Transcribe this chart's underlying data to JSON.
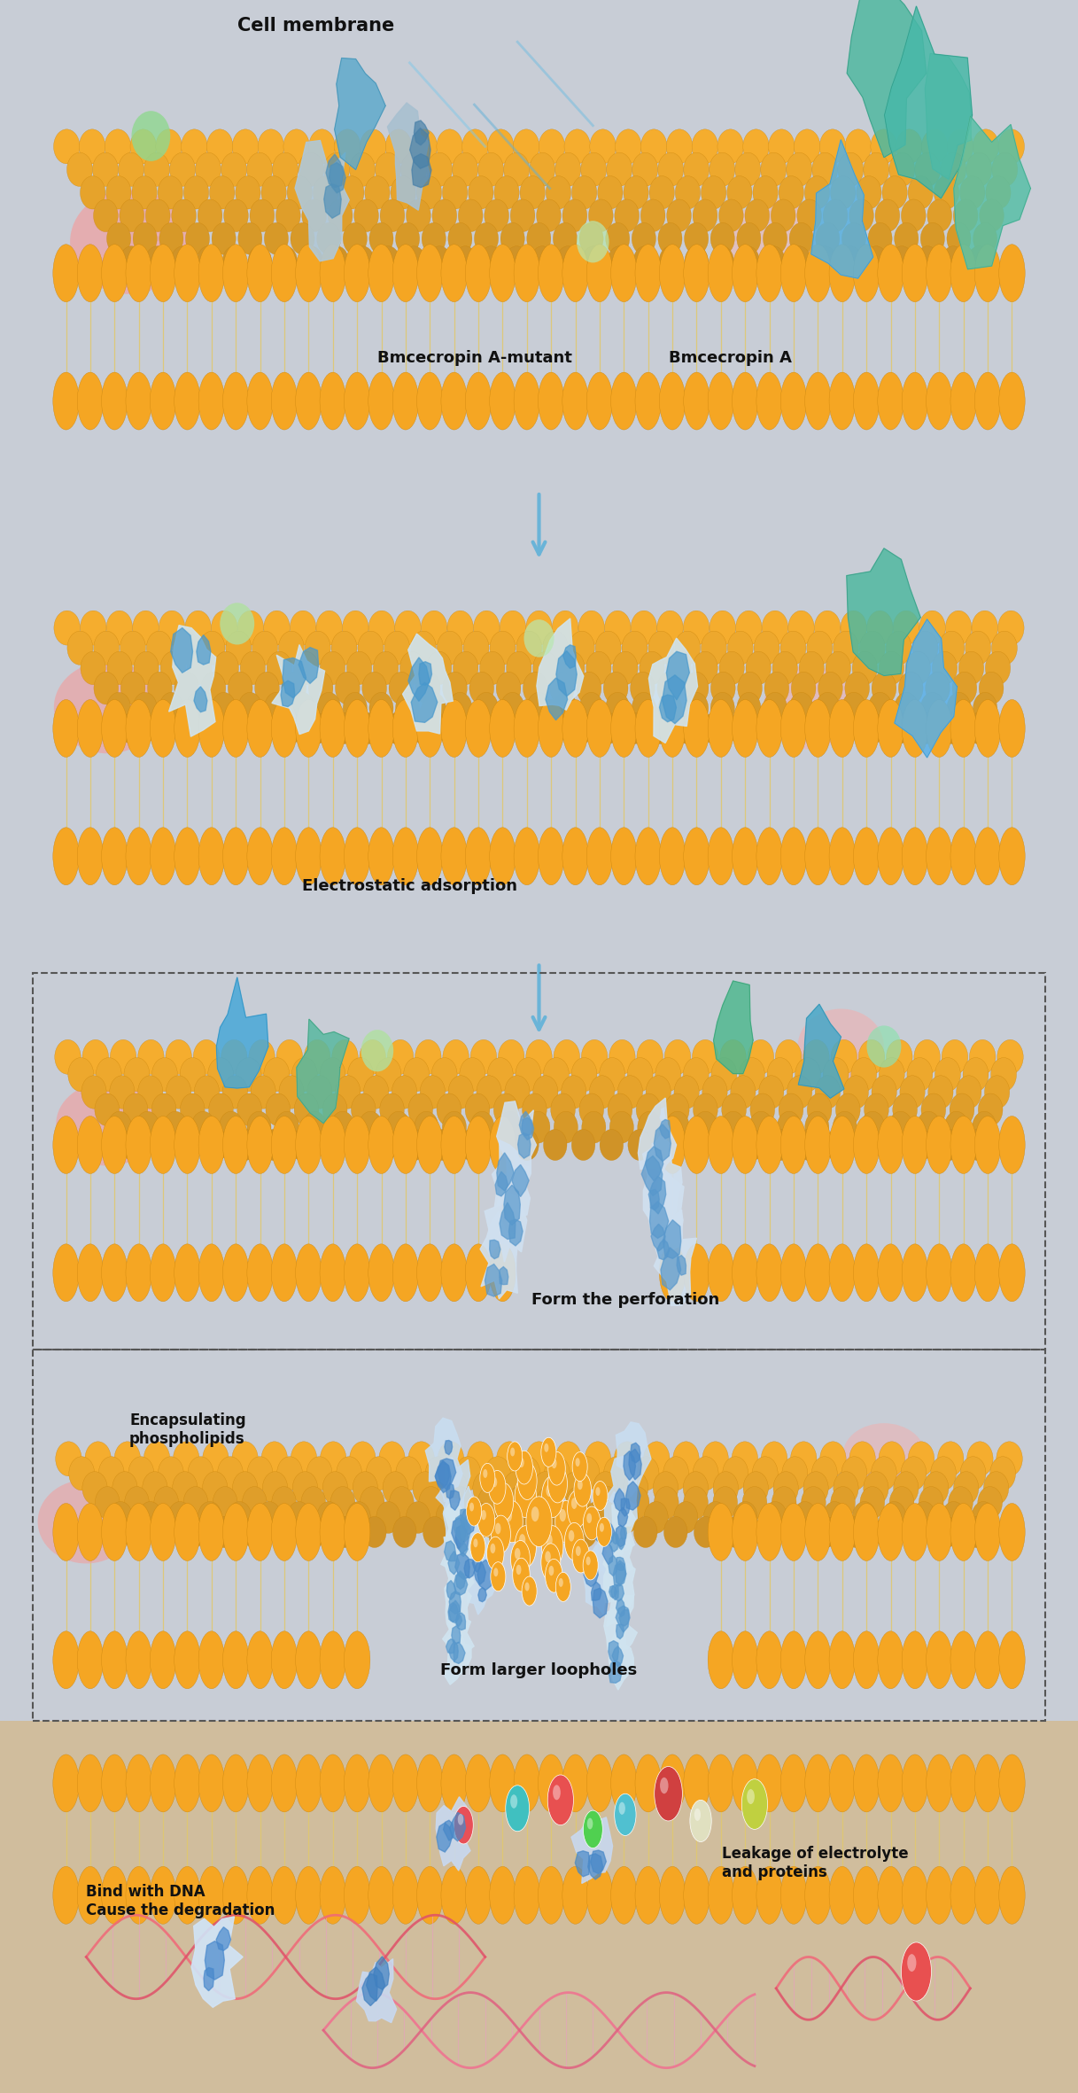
{
  "background_color": "#c8cdd6",
  "membrane_color": "#f5a623",
  "membrane_dark": "#c8830a",
  "lipid_tail_color": "#e0c870",
  "text_color": "#111111",
  "arrow_color": "#6ab4d8",
  "dashed_box_color": "#555555",
  "labels": {
    "cell_membrane": "Cell membrane",
    "bmcecropin_a_mutant": "Bmcecropin A-mutant",
    "bmcecropin_a": "Bmcecropin A",
    "electrostatic": "Electrostatic adsorption",
    "form_perforation": "Form the perforation",
    "encapsulating": "Encapsulating\nphospholipids",
    "form_loopholes": "Form larger loopholes",
    "leakage": "Leakage of electrolyte\nand proteins",
    "bind_dna": "Bind with DNA\nCause the degradation"
  },
  "figsize": [
    12.17,
    23.62
  ],
  "dpi": 100
}
